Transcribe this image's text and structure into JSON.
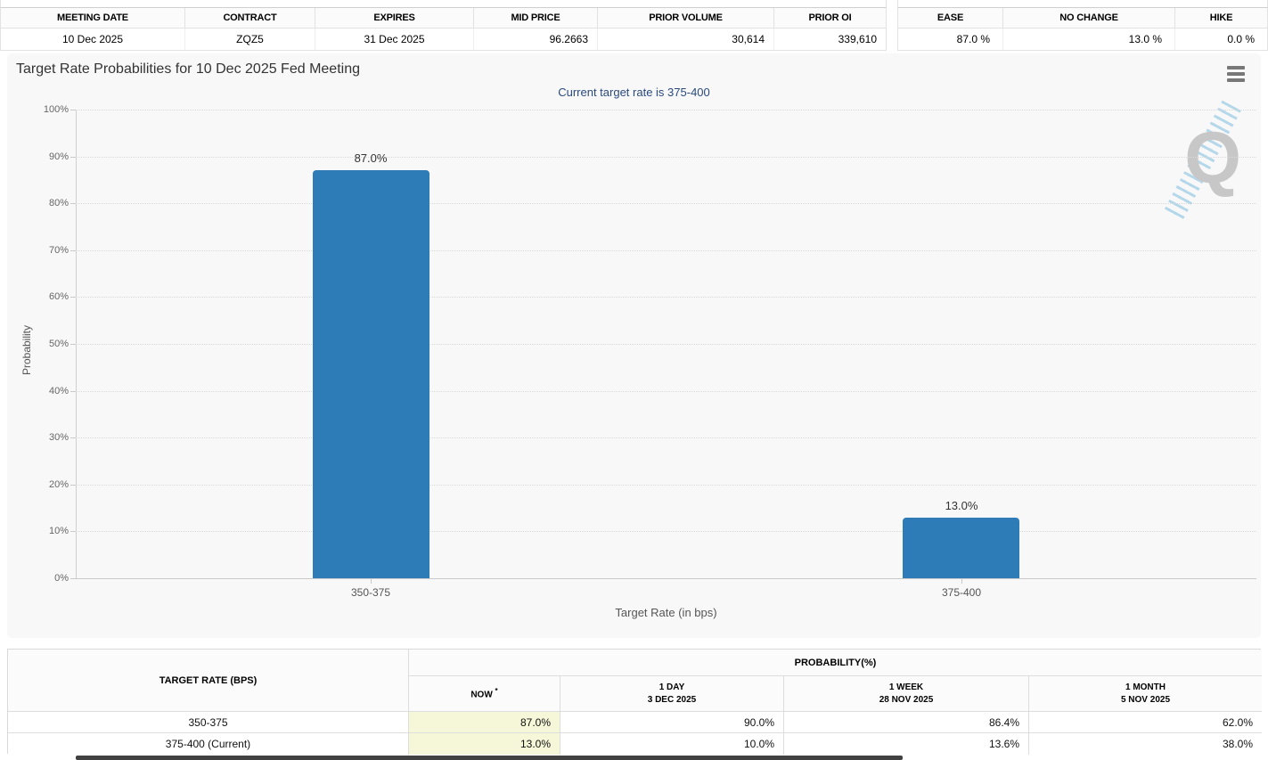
{
  "contract_table": {
    "headers": [
      "MEETING DATE",
      "CONTRACT",
      "EXPIRES",
      "MID PRICE",
      "PRIOR VOLUME",
      "PRIOR OI"
    ],
    "values": [
      "10 Dec 2025",
      "ZQZ5",
      "31 Dec 2025",
      "96.2663",
      "30,614",
      "339,610"
    ]
  },
  "move_table": {
    "headers": [
      "EASE",
      "NO CHANGE",
      "HIKE"
    ],
    "values": [
      "87.0 %",
      "13.0 %",
      "0.0 %"
    ]
  },
  "chart": {
    "title": "Target Rate Probabilities for 10 Dec 2025 Fed Meeting",
    "subtitle": "Current target rate is 375-400",
    "watermark_letter": "Q"
  },
  "chart_data": {
    "type": "bar",
    "title": "Target Rate Probabilities for 10 Dec 2025 Fed Meeting",
    "subtitle": "Current target rate is 375-400",
    "categories": [
      "350-375",
      "375-400"
    ],
    "values": [
      87.0,
      13.0
    ],
    "data_labels": [
      "87.0%",
      "13.0%"
    ],
    "xlabel": "Target Rate (in bps)",
    "ylabel": "Probability",
    "ylim": [
      0,
      100
    ],
    "ytick_labels": [
      "0%",
      "10%",
      "20%",
      "30%",
      "40%",
      "50%",
      "60%",
      "70%",
      "80%",
      "90%",
      "100%"
    ],
    "grid": "dotted-horizontal",
    "legend": "none",
    "bar_color": "#2d7cb8"
  },
  "history_table": {
    "corner_header": "TARGET RATE (BPS)",
    "group_header": "PROBABILITY(%)",
    "now_header": "NOW",
    "now_asterisk": "*",
    "column_headers": [
      {
        "line1": "1 DAY",
        "line2": "3 DEC 2025"
      },
      {
        "line1": "1 WEEK",
        "line2": "28 NOV 2025"
      },
      {
        "line1": "1 MONTH",
        "line2": "5 NOV 2025"
      }
    ],
    "rows": [
      {
        "rate": "350-375",
        "now": "87.0%",
        "day": "90.0%",
        "week": "86.4%",
        "month": "62.0%"
      },
      {
        "rate": "375-400 (Current)",
        "now": "13.0%",
        "day": "10.0%",
        "week": "13.6%",
        "month": "38.0%"
      }
    ]
  },
  "colors": {
    "bar": "#2d7cb8",
    "subtitle": "#2a4a7f",
    "now_cell_bg": "#f6f6d8",
    "panel_bg": "#f8f8f8"
  }
}
